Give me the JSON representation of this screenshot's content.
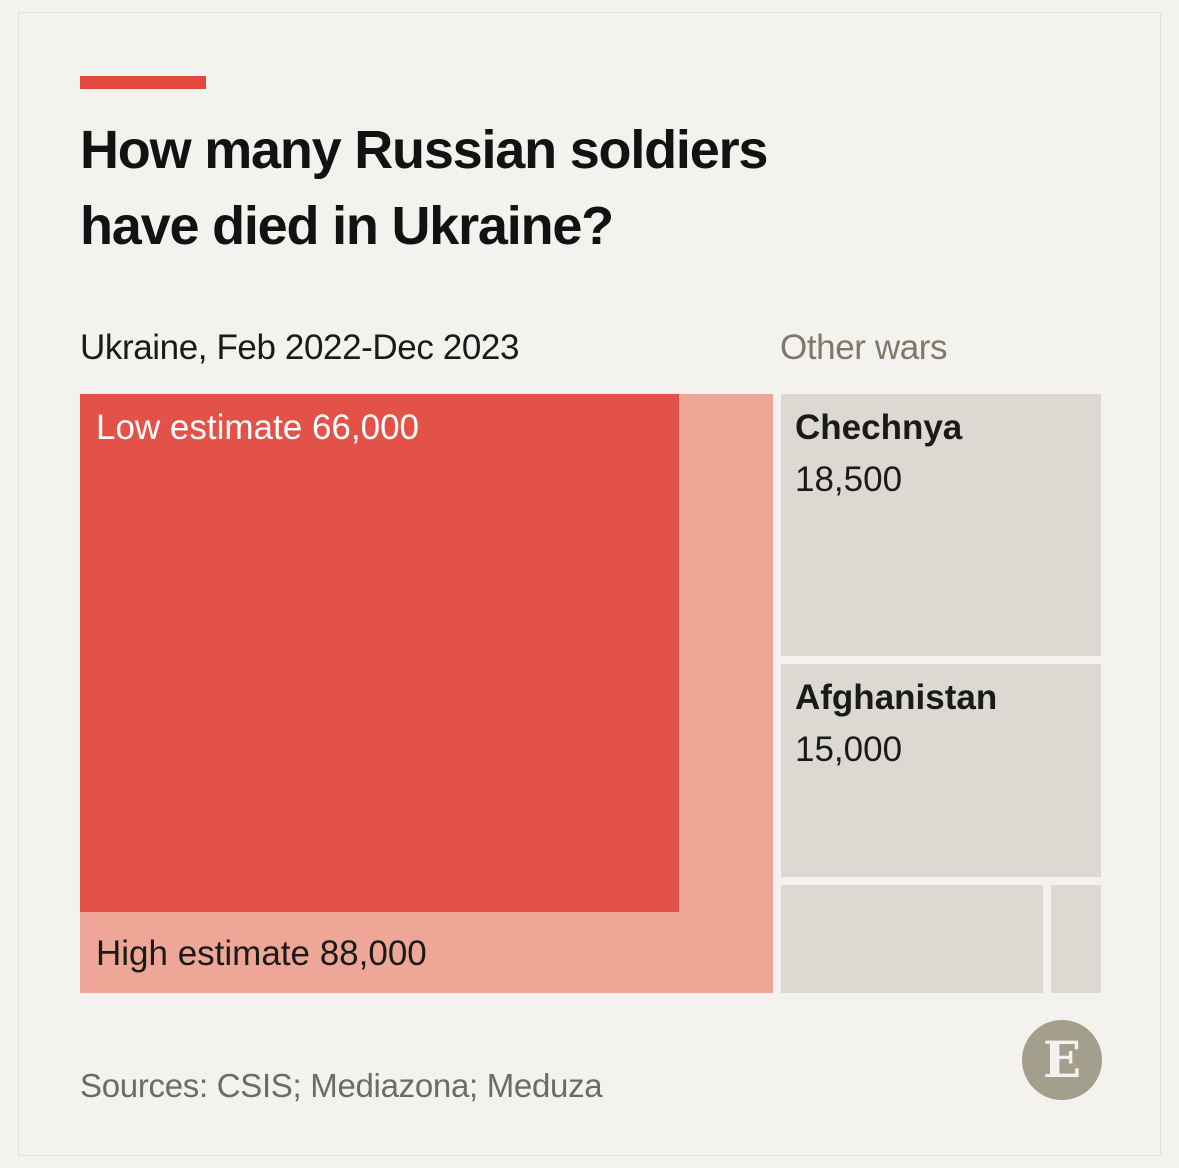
{
  "header": {
    "title_line1": "How many Russian soldiers",
    "title_line2": "have died in Ukraine?"
  },
  "sections": {
    "ukraine_label": "Ukraine, Feb 2022-Dec 2023",
    "other_label": "Other wars"
  },
  "footer": {
    "source": "Sources: CSIS; Mediazona; Meduza",
    "logo_letter": "E"
  },
  "colors": {
    "accent": "#e3483f",
    "low_estimate": "#e35248",
    "high_estimate": "#eea696",
    "other_wars": "#dcd9d2",
    "text_dark": "#1a1a1a",
    "text_light": "#ffffff"
  },
  "chart_data": {
    "type": "treemap",
    "ukraine": {
      "low": {
        "label": "Low estimate",
        "value_text": "66,000",
        "value": 66000
      },
      "high": {
        "label": "High estimate",
        "value_text": "88,000",
        "value": 88000
      }
    },
    "other_wars": [
      {
        "name": "Chechnya",
        "value_text": "18,500",
        "value": 18500
      },
      {
        "name": "Afghanistan",
        "value_text": "15,000",
        "value": 15000
      },
      {
        "name": "",
        "value_text": ""
      },
      {
        "name": "",
        "value_text": ""
      }
    ]
  }
}
